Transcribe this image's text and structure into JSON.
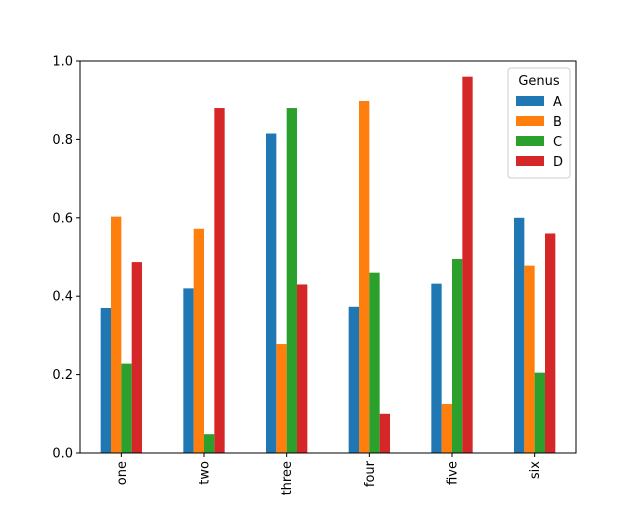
{
  "chart_data": {
    "type": "bar",
    "title": "",
    "xlabel": "",
    "ylabel": "",
    "categories": [
      "one",
      "two",
      "three",
      "four",
      "five",
      "six"
    ],
    "ylim": [
      0.0,
      1.0
    ],
    "yticks": [
      0.0,
      0.2,
      0.4,
      0.6,
      0.8,
      1.0
    ],
    "ytick_labels": [
      "0.0",
      "0.2",
      "0.4",
      "0.6",
      "0.8",
      "1.0"
    ],
    "legend": {
      "title": "Genus",
      "placement": "top-right"
    },
    "series": [
      {
        "name": "A",
        "color": "#1f77b4",
        "values": [
          0.37,
          0.42,
          0.815,
          0.373,
          0.432,
          0.6
        ]
      },
      {
        "name": "B",
        "color": "#ff7f0e",
        "values": [
          0.603,
          0.572,
          0.278,
          0.898,
          0.125,
          0.478
        ]
      },
      {
        "name": "C",
        "color": "#2ca02c",
        "values": [
          0.228,
          0.048,
          0.88,
          0.46,
          0.495,
          0.205
        ]
      },
      {
        "name": "D",
        "color": "#d62728",
        "values": [
          0.487,
          0.88,
          0.43,
          0.1,
          0.96,
          0.56
        ]
      }
    ]
  }
}
